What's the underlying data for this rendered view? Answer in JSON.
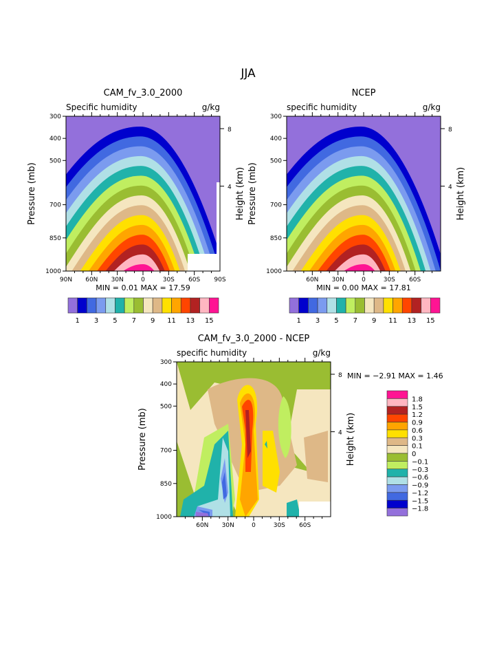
{
  "title": "JJA",
  "colors": [
    "#9370DB",
    "#0000CD",
    "#4169E1",
    "#7B9BEF",
    "#B0E0E6",
    "#20B2AA",
    "#C0EE60",
    "#9ABD32",
    "#F5E6BF",
    "#DEB887",
    "#FFE000",
    "#FFA500",
    "#FF4500",
    "#B22222",
    "#FFB6C1",
    "#FF1493"
  ],
  "chart_data": [
    {
      "type": "contour",
      "title": "CAM_fv_3.0_2000",
      "left_label": "Specific humidity",
      "units": "g/kg",
      "ylabel": "Pressure (mb)",
      "ylabel_right": "Height (km)",
      "yticks": [
        300,
        400,
        500,
        700,
        850,
        1000
      ],
      "yticks_right": [
        "8",
        "4"
      ],
      "xticks": [
        "90N",
        "60N",
        "30N",
        "0",
        "30S",
        "60S",
        "90S"
      ],
      "stats": "MIN =    0.01   MAX =   17.59",
      "colorbar_labels": [
        "1",
        "3",
        "5",
        "7",
        "9",
        "11",
        "13",
        "15"
      ]
    },
    {
      "type": "contour",
      "title": "NCEP",
      "left_label": "specific humidity",
      "units": "g/kg",
      "ylabel": "Pressure (mb)",
      "ylabel_right": "Height (km)",
      "yticks": [
        300,
        400,
        500,
        700,
        850,
        1000
      ],
      "yticks_right": [
        "8",
        "4"
      ],
      "xticks": [
        "60N",
        "30N",
        "0",
        "30S",
        "60S"
      ],
      "stats": "MIN =    0.00   MAX =   17.81",
      "colorbar_labels": [
        "1",
        "3",
        "5",
        "7",
        "9",
        "11",
        "13",
        "15"
      ]
    },
    {
      "type": "contour",
      "title": "CAM_fv_3.0_2000 - NCEP",
      "left_label": "specific humidity",
      "units": "g/kg",
      "ylabel": "Pressure (mb)",
      "ylabel_right": "Height (km)",
      "yticks": [
        300,
        400,
        500,
        700,
        850,
        1000
      ],
      "yticks_right": [
        "8",
        "4"
      ],
      "xticks": [
        "60N",
        "30N",
        "0",
        "30S",
        "60S"
      ],
      "stats": "MIN =   −2.91   MAX =    1.46",
      "colorbar_labels": [
        "1.8",
        "1.5",
        "1.2",
        "0.9",
        "0.6",
        "0.3",
        "0.1",
        "0",
        "−0.1",
        "−0.3",
        "−0.6",
        "−0.9",
        "−1.2",
        "−1.5",
        "−1.8"
      ]
    }
  ]
}
